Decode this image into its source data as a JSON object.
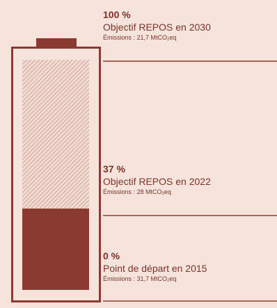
{
  "battery": {
    "current_fill_percent": 37,
    "target_fill_percent": 100,
    "colors": {
      "body": "#8a3a31",
      "hatch": "#d9b0a6",
      "background": "#f6e4dc"
    }
  },
  "milestones": [
    {
      "percent": "100 %",
      "title": "Objectif REPOS en 2030",
      "emission_prefix": "Émissions : 21,7 MtCO",
      "emission_sub": "2",
      "emission_suffix": "eq"
    },
    {
      "percent": "37 %",
      "title": "Objectif REPOS en 2022",
      "emission_prefix": "Émissions : 28 MtCO",
      "emission_sub": "2",
      "emission_suffix": "eq"
    },
    {
      "percent": "0 %",
      "title": "Point de départ en 2015",
      "emission_prefix": "Émissions : 31,7 MtCO",
      "emission_sub": "2",
      "emission_suffix": "eq"
    }
  ],
  "colors": {
    "text": "#7d3128",
    "divider": "#a9665c"
  }
}
